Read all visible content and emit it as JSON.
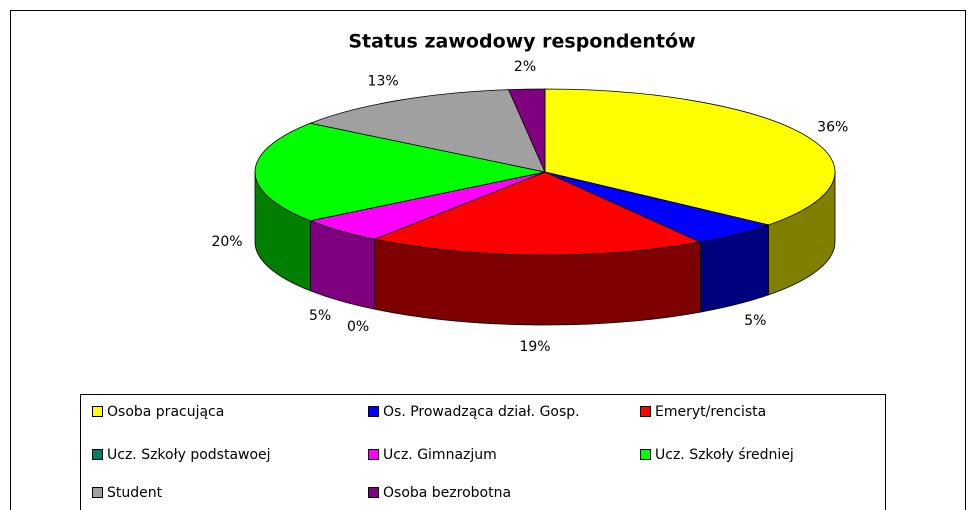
{
  "chart_data": {
    "type": "pie3d",
    "title": "Status zawodowy respondentów",
    "categories": [
      "Osoba pracująca",
      "Os. Prowadząca dział. Gosp.",
      "Emeryt/rencista",
      "Ucz. Szkoły podstawoej",
      "Ucz. Gimnazjum",
      "Ucz. Szkoły średniej",
      "Student",
      "Osoba bezrobotna"
    ],
    "values": [
      36,
      5,
      19,
      0,
      5,
      20,
      13,
      2
    ],
    "value_labels": [
      "36%",
      "5%",
      "19%",
      "0%",
      "5%",
      "20%",
      "13%",
      "2%"
    ],
    "colors": [
      "#ffff00",
      "#0000ff",
      "#ff0000",
      "#008060",
      "#ff00ff",
      "#00ff00",
      "#a0a0a0",
      "#800080"
    ],
    "legend": "bottom"
  }
}
